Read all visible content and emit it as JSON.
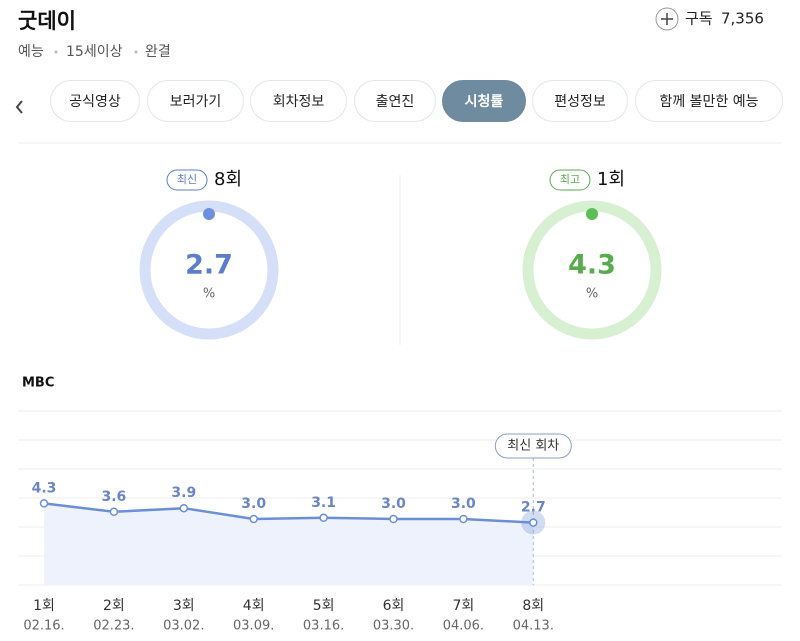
{
  "header": {
    "title": "굿데이",
    "meta": [
      "예능",
      "15세이상",
      "완결"
    ],
    "subscribe_label": "구독",
    "subscribers": "7,356"
  },
  "tabs": {
    "items": [
      "공식영상",
      "보러가기",
      "회차정보",
      "출연진",
      "시청률",
      "편성정보",
      "함께 볼만한 예능"
    ],
    "active": 4
  },
  "summary": {
    "latest": {
      "badge": "최신",
      "episode": "8회",
      "value": 2.7,
      "unit": "%",
      "color": "#5b7dcc",
      "ring": "#d6dff8",
      "dot": "#6d8fe0"
    },
    "best": {
      "badge": "최고",
      "episode": "1회",
      "value": 4.3,
      "unit": "%",
      "color": "#5aaa4f",
      "ring": "#d8f0d2",
      "dot": "#5cbf55"
    }
  },
  "chart_data": {
    "type": "line",
    "title": "MBC",
    "categories": [
      "1회",
      "2회",
      "3회",
      "4회",
      "5회",
      "6회",
      "7회",
      "8회"
    ],
    "dates": [
      "02.16.",
      "02.23.",
      "03.02.",
      "03.09.",
      "03.16.",
      "03.30.",
      "04.06.",
      "04.13."
    ],
    "values": [
      4.3,
      3.6,
      3.9,
      3.0,
      3.1,
      3.0,
      3.0,
      2.7
    ],
    "value_labels": [
      "4.3",
      "3.6",
      "3.9",
      "3.0",
      "3.1",
      "3.0",
      "3.0",
      "2.7"
    ],
    "color": "#6b8fd6",
    "ylim": [
      -2.5,
      12
    ],
    "annotation": "최신 회차"
  }
}
